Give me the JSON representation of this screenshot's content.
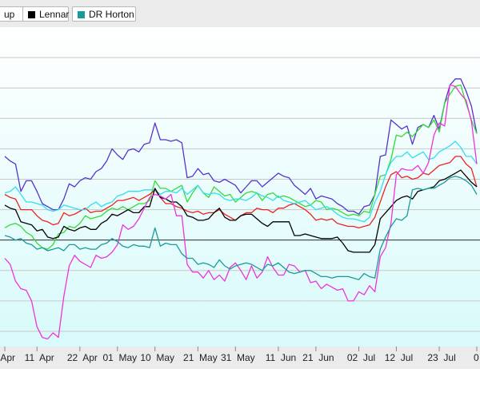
{
  "legend": {
    "items": [
      {
        "label": "up",
        "color": ""
      },
      {
        "label": "Lennar",
        "color": "#000000"
      },
      {
        "label": "DR Horton",
        "color": "#1a9a9a"
      }
    ]
  },
  "chart_data": {
    "type": "line",
    "title": "",
    "xlabel": "",
    "ylabel": "",
    "ylim": [
      -7,
      14
    ],
    "grid": true,
    "legend_placement": "top-left",
    "baseline": 0,
    "x_ticks": [
      {
        "label": "Apr",
        "idx": 0
      },
      {
        "label": "11  Apr",
        "idx": 6
      },
      {
        "label": "22  Apr",
        "idx": 14
      },
      {
        "label": "01  May",
        "idx": 21
      },
      {
        "label": "10  May",
        "idx": 28
      },
      {
        "label": "21  May",
        "idx": 36
      },
      {
        "label": "31  May",
        "idx": 43
      },
      {
        "label": "11  Jun",
        "idx": 51
      },
      {
        "label": "21  Jun",
        "idx": 58
      },
      {
        "label": "02  Jul",
        "idx": 66
      },
      {
        "label": "12  Jul",
        "idx": 73
      },
      {
        "label": "23  Jul",
        "idx": 81
      },
      {
        "label": "0",
        "idx": 88
      }
    ],
    "x_count": 89,
    "series": [
      {
        "name": "",
        "color": "#5533cc",
        "values": [
          5.5,
          5.2,
          5.0,
          3.2,
          3.9,
          3.9,
          3.2,
          2.4,
          2.2,
          2.0,
          2.0,
          2.7,
          3.7,
          3.5,
          3.9,
          4.1,
          4.0,
          4.5,
          4.7,
          5.2,
          6.0,
          5.6,
          5.3,
          5.9,
          6.0,
          5.8,
          6.3,
          6.4,
          7.7,
          6.6,
          6.6,
          6.5,
          6.6,
          6.4,
          4.1,
          4.2,
          4.7,
          4.3,
          4.4,
          3.9,
          3.8,
          4.0,
          3.8,
          3.6,
          3.1,
          3.5,
          3.9,
          3.9,
          3.5,
          3.8,
          4.1,
          4.4,
          4.2,
          4.1,
          3.6,
          3.3,
          3.0,
          3.4,
          2.7,
          2.9,
          2.8,
          2.7,
          2.4,
          2.2,
          1.9,
          1.9,
          1.7,
          2.2,
          2.3,
          3.0,
          5.5,
          5.6,
          7.9,
          7.6,
          7.3,
          7.5,
          6.3,
          7.4,
          7.6,
          7.4,
          8.2,
          7.3,
          9.0,
          10.2,
          10.6,
          10.6,
          9.8,
          8.8,
          7.0
        ]
      },
      {
        "name": "",
        "color": "#33dd33",
        "values": [
          0.8,
          1.0,
          1.1,
          0.9,
          0.5,
          0.3,
          -0.2,
          -0.5,
          -0.6,
          -0.3,
          0.4,
          0.5,
          0.9,
          0.8,
          1.1,
          1.6,
          1.4,
          1.5,
          1.6,
          1.9,
          2.1,
          2.0,
          2.2,
          2.0,
          2.2,
          2.4,
          2.4,
          2.6,
          3.9,
          3.4,
          3.4,
          3.2,
          3.4,
          3.6,
          2.5,
          3.1,
          3.6,
          3.1,
          2.8,
          3.5,
          3.2,
          2.9,
          3.0,
          2.5,
          2.8,
          3.1,
          3.2,
          3.1,
          2.6,
          3.0,
          3.1,
          2.8,
          2.9,
          2.8,
          2.6,
          2.4,
          2.2,
          2.3,
          2.6,
          2.5,
          2.0,
          2.1,
          2.0,
          1.8,
          1.6,
          1.7,
          1.6,
          1.9,
          1.8,
          3.0,
          4.2,
          4.3,
          5.3,
          6.9,
          6.8,
          7.1,
          6.8,
          7.2,
          7.6,
          7.4,
          7.9,
          7.1,
          9.0,
          9.6,
          10.1,
          10.2,
          9.0,
          7.9,
          7.0
        ]
      },
      {
        "name": "",
        "color": "#ee2222",
        "values": [
          3.0,
          2.8,
          2.7,
          2.0,
          2.0,
          2.0,
          1.6,
          1.3,
          1.2,
          1.0,
          1.1,
          1.8,
          1.6,
          1.7,
          1.9,
          2.1,
          1.8,
          1.9,
          1.9,
          2.1,
          2.3,
          2.6,
          2.6,
          2.7,
          2.8,
          2.6,
          2.8,
          3.0,
          3.3,
          2.8,
          2.4,
          2.4,
          2.2,
          2.1,
          1.9,
          1.8,
          1.9,
          1.7,
          1.8,
          1.8,
          2.0,
          1.7,
          1.5,
          1.3,
          1.6,
          1.8,
          1.8,
          2.1,
          2.0,
          2.0,
          1.8,
          2.1,
          2.1,
          2.3,
          2.4,
          2.2,
          2.0,
          1.7,
          1.3,
          1.4,
          1.3,
          1.4,
          1.1,
          1.0,
          0.9,
          0.9,
          0.8,
          0.9,
          1.0,
          1.5,
          2.5,
          3.5,
          4.3,
          4.5,
          4.1,
          4.2,
          4.0,
          4.1,
          4.4,
          4.3,
          4.6,
          4.9,
          5.0,
          5.1,
          5.5,
          5.5,
          5.0,
          4.7,
          3.5
        ]
      },
      {
        "name": "",
        "color": "#33ddee",
        "values": [
          3.1,
          3.2,
          3.5,
          3.0,
          2.5,
          2.5,
          2.4,
          2.3,
          2.0,
          1.9,
          2.0,
          2.3,
          2.2,
          2.1,
          2.0,
          2.0,
          2.3,
          2.5,
          2.2,
          2.4,
          2.5,
          2.9,
          3.0,
          3.2,
          3.2,
          3.2,
          3.3,
          3.3,
          3.3,
          3.0,
          3.2,
          3.2,
          3.1,
          3.4,
          3.0,
          3.3,
          3.6,
          3.1,
          3.0,
          3.1,
          3.0,
          2.7,
          2.6,
          2.7,
          2.7,
          2.6,
          2.8,
          3.1,
          2.9,
          2.8,
          2.6,
          2.9,
          2.6,
          2.5,
          2.4,
          2.5,
          2.6,
          2.3,
          2.0,
          2.1,
          2.2,
          2.0,
          1.7,
          1.5,
          1.4,
          1.4,
          1.3,
          1.2,
          1.5,
          2.5,
          3.2,
          4.3,
          5.1,
          5.5,
          5.5,
          5.8,
          5.4,
          5.6,
          5.8,
          5.3,
          5.4,
          5.8,
          6.0,
          6.2,
          6.5,
          6.1,
          5.5,
          5.5,
          5.0
        ]
      },
      {
        "name": "Lennar",
        "color": "#000000",
        "values": [
          2.3,
          2.1,
          2.0,
          1.2,
          1.1,
          1.0,
          0.6,
          0.7,
          0.2,
          0.1,
          0.2,
          0.9,
          0.7,
          0.6,
          0.8,
          0.9,
          0.7,
          0.7,
          1.1,
          1.3,
          1.7,
          1.6,
          1.8,
          2.0,
          1.8,
          1.8,
          2.2,
          2.2,
          3.4,
          2.8,
          2.7,
          2.5,
          2.5,
          2.2,
          1.6,
          1.5,
          1.3,
          1.3,
          1.4,
          1.8,
          2.1,
          1.5,
          1.3,
          1.3,
          1.6,
          1.7,
          1.7,
          1.4,
          1.1,
          0.9,
          1.2,
          1.2,
          1.2,
          1.2,
          0.3,
          0.3,
          0.4,
          0.3,
          0.2,
          0.1,
          0.1,
          0.1,
          0.2,
          -0.2,
          -0.7,
          -0.8,
          -0.8,
          -0.8,
          -0.8,
          -0.3,
          1.4,
          1.8,
          2.2,
          2.6,
          2.8,
          2.9,
          2.7,
          3.2,
          3.3,
          3.4,
          3.5,
          3.9,
          4.0,
          4.2,
          4.4,
          4.6,
          4.2,
          3.8,
          3.5
        ]
      },
      {
        "name": "",
        "color": "#ee33dd",
        "values": [
          -1.2,
          -1.6,
          -2.7,
          -3.2,
          -3.3,
          -4.0,
          -5.7,
          -6.4,
          -6.5,
          -6.1,
          -6.4,
          -3.7,
          -1.7,
          -1.0,
          -1.4,
          -1.6,
          -1.8,
          -1.0,
          -1.2,
          -1.1,
          -0.8,
          -0.3,
          1.0,
          0.7,
          0.9,
          1.4,
          2.1,
          2.8,
          3.0,
          2.9,
          2.7,
          3.0,
          1.6,
          1.6,
          -1.6,
          -2.1,
          -2.1,
          -2.5,
          -2.0,
          -2.6,
          -2.3,
          -2.7,
          -1.8,
          -1.5,
          -2.0,
          -2.6,
          -1.7,
          -2.5,
          -2.1,
          -1.1,
          -1.8,
          -2.3,
          -2.3,
          -1.6,
          -1.7,
          -2.1,
          -2.0,
          -2.8,
          -2.7,
          -3.2,
          -2.9,
          -3.1,
          -3.3,
          -3.2,
          -4.0,
          -4.0,
          -3.4,
          -3.6,
          -3.0,
          -3.4,
          -1.1,
          -0.5,
          1.1,
          4.3,
          4.7,
          4.6,
          4.6,
          4.9,
          4.4,
          5.1,
          6.9,
          7.7,
          7.5,
          10.2,
          10.1,
          9.6,
          9.2,
          7.8,
          5.0
        ]
      },
      {
        "name": "DR Horton",
        "color": "#1a9a9a",
        "values": [
          0.3,
          0.2,
          0.0,
          0.1,
          -0.2,
          -0.3,
          -0.6,
          -0.5,
          -0.7,
          -0.6,
          -0.5,
          -0.7,
          -0.3,
          -0.3,
          -0.6,
          -0.5,
          -0.6,
          -0.6,
          -0.3,
          -0.2,
          0.1,
          -0.1,
          -0.4,
          -0.5,
          -0.3,
          -0.4,
          -0.4,
          -0.5,
          0.8,
          -0.4,
          -0.2,
          -0.3,
          -0.3,
          -0.9,
          -1.2,
          -1.2,
          -1.6,
          -1.5,
          -1.6,
          -1.8,
          -1.3,
          -1.7,
          -1.9,
          -1.7,
          -1.6,
          -1.5,
          -1.6,
          -1.8,
          -2.0,
          -1.6,
          -1.7,
          -1.5,
          -1.8,
          -2.1,
          -2.2,
          -2.1,
          -2.0,
          -2.0,
          -2.2,
          -2.4,
          -2.4,
          -2.5,
          -2.4,
          -2.4,
          -2.4,
          -2.5,
          -2.6,
          -2.2,
          -2.4,
          -2.5,
          -0.6,
          0.2,
          0.9,
          1.4,
          1.3,
          1.6,
          3.3,
          3.4,
          3.3,
          3.4,
          3.4,
          3.6,
          3.8,
          4.1,
          4.2,
          4.1,
          3.9,
          3.6,
          3.0
        ]
      }
    ]
  }
}
